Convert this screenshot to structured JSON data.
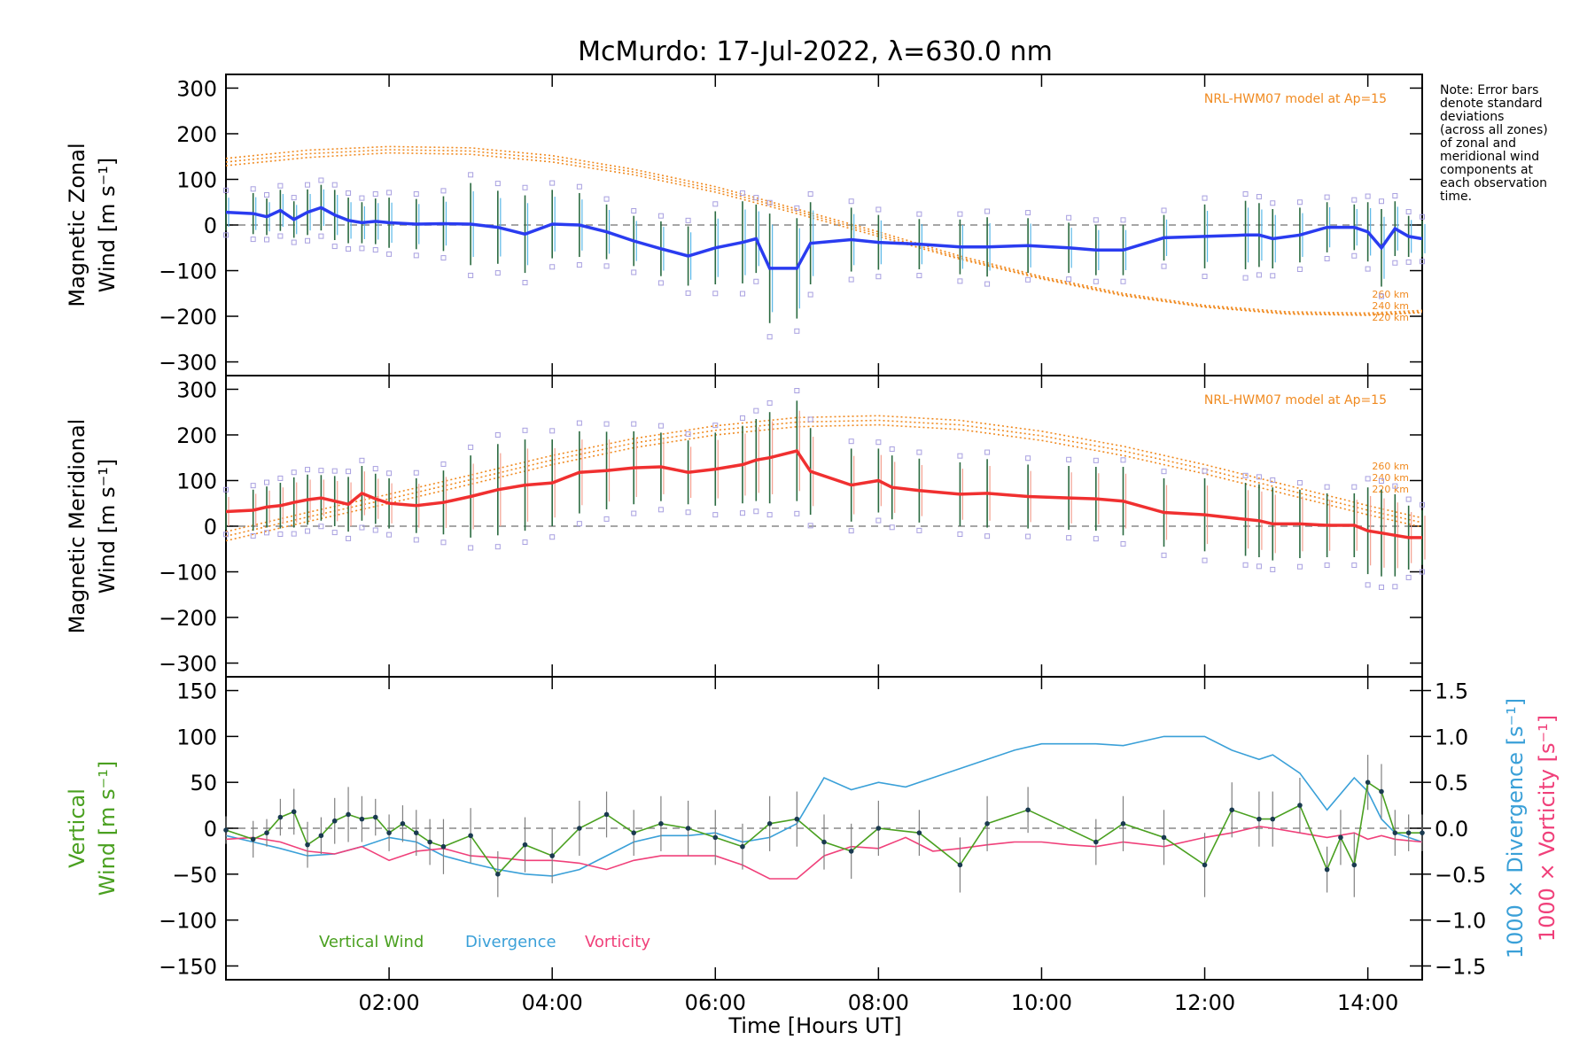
{
  "figure": {
    "title": "McMurdo: 17-Jul-2022, λ=630.0 nm",
    "note": [
      "Note: Error bars",
      "denote standard",
      "deviations",
      "(across all zones)",
      "of zonal and",
      "meridional wind",
      "components at",
      "each observation",
      "time."
    ],
    "xlabel": "Time [Hours UT]",
    "xticks": [
      "02:00",
      "04:00",
      "06:00",
      "08:00",
      "10:00",
      "12:00",
      "14:00"
    ]
  },
  "colors": {
    "zonal": "#2a3cf0",
    "zonal_light": "#5ab8e8",
    "meridional": "#f03030",
    "meridional_light": "#f4a090",
    "model": "#f08a20",
    "vertical": "#4aa020",
    "divergence": "#3aa0d8",
    "vorticity": "#f0407a",
    "errorbar": "#808080",
    "scatter": "#a8a0e0"
  },
  "chart_data": [
    {
      "type": "line",
      "name": "zonal-panel",
      "ylabel": [
        "Magnetic Zonal",
        "Wind [m s⁻¹]"
      ],
      "ylim": [
        -330,
        330
      ],
      "yticks": [
        300,
        200,
        100,
        0,
        -100,
        -200,
        -300
      ],
      "xlim": [
        "00:00",
        "14:40"
      ],
      "model_label": "NRL-HWM07 model at Ap=15",
      "model_altitudes": [
        "260 km",
        "240 km",
        "220 km"
      ],
      "series": [
        {
          "kind": "wind",
          "x": [
            "00:00",
            "00:20",
            "00:30",
            "00:40",
            "00:50",
            "01:00",
            "01:10",
            "01:20",
            "01:30",
            "01:40",
            "01:50",
            "02:00",
            "02:20",
            "02:40",
            "03:00",
            "03:20",
            "03:40",
            "04:00",
            "04:20",
            "04:40",
            "05:00",
            "05:20",
            "05:40",
            "06:00",
            "06:20",
            "06:30",
            "06:40",
            "07:00",
            "07:10",
            "07:40",
            "08:00",
            "08:30",
            "09:00",
            "09:20",
            "09:50",
            "10:20",
            "10:40",
            "11:00",
            "11:30",
            "12:00",
            "12:30",
            "12:40",
            "12:50",
            "13:10",
            "13:30",
            "13:50",
            "14:00",
            "14:10",
            "14:20",
            "14:30",
            "14:40"
          ],
          "values": [
            28,
            25,
            18,
            32,
            12,
            28,
            38,
            22,
            10,
            5,
            8,
            5,
            2,
            3,
            2,
            -5,
            -20,
            2,
            0,
            -15,
            -35,
            -52,
            -68,
            -50,
            -38,
            -30,
            -95,
            -95,
            -40,
            -32,
            -38,
            -42,
            -48,
            -48,
            -45,
            -50,
            -55,
            -55,
            -28,
            -25,
            -22,
            -22,
            -30,
            -22,
            -5,
            -5,
            -15,
            -50,
            -8,
            -25,
            -30
          ],
          "errors": [
            40,
            45,
            40,
            45,
            40,
            50,
            50,
            55,
            50,
            45,
            50,
            55,
            55,
            60,
            90,
            80,
            85,
            75,
            70,
            60,
            55,
            60,
            65,
            80,
            90,
            75,
            120,
            110,
            90,
            70,
            60,
            55,
            60,
            65,
            60,
            55,
            55,
            55,
            50,
            70,
            75,
            70,
            65,
            60,
            55,
            50,
            65,
            85,
            60,
            45,
            40
          ]
        },
        {
          "kind": "model",
          "name": "260 km",
          "x": [
            "00:00",
            "01:00",
            "02:00",
            "03:00",
            "04:00",
            "05:00",
            "06:00",
            "07:00",
            "08:00",
            "09:00",
            "10:00",
            "11:00",
            "12:00",
            "13:00",
            "14:00",
            "14:40"
          ],
          "values": [
            130,
            148,
            158,
            155,
            138,
            110,
            72,
            25,
            -25,
            -75,
            -118,
            -155,
            -180,
            -195,
            -198,
            -192
          ]
        },
        {
          "kind": "model",
          "name": "240 km",
          "x": [
            "00:00",
            "01:00",
            "02:00",
            "03:00",
            "04:00",
            "05:00",
            "06:00",
            "07:00",
            "08:00",
            "09:00",
            "10:00",
            "11:00",
            "12:00",
            "13:00",
            "14:00",
            "14:40"
          ],
          "values": [
            138,
            156,
            165,
            162,
            145,
            116,
            78,
            30,
            -20,
            -72,
            -116,
            -153,
            -179,
            -193,
            -196,
            -190
          ]
        },
        {
          "kind": "model",
          "name": "220 km",
          "x": [
            "00:00",
            "01:00",
            "02:00",
            "03:00",
            "04:00",
            "05:00",
            "06:00",
            "07:00",
            "08:00",
            "09:00",
            "10:00",
            "11:00",
            "12:00",
            "13:00",
            "14:00",
            "14:40"
          ],
          "values": [
            146,
            164,
            172,
            169,
            152,
            122,
            84,
            35,
            -15,
            -68,
            -113,
            -150,
            -176,
            -190,
            -193,
            -187
          ]
        }
      ]
    },
    {
      "type": "line",
      "name": "meridional-panel",
      "ylabel": [
        "Magnetic Meridional",
        "Wind [m s⁻¹]"
      ],
      "ylim": [
        -330,
        330
      ],
      "yticks": [
        300,
        200,
        100,
        0,
        -100,
        -200,
        -300
      ],
      "xlim": [
        "00:00",
        "14:40"
      ],
      "model_label": "NRL-HWM07 model at Ap=15",
      "model_altitudes": [
        "260 km",
        "240 km",
        "220 km"
      ],
      "series": [
        {
          "kind": "wind",
          "x": [
            "00:00",
            "00:20",
            "00:30",
            "00:40",
            "00:50",
            "01:00",
            "01:10",
            "01:20",
            "01:30",
            "01:40",
            "01:50",
            "02:00",
            "02:20",
            "02:40",
            "03:00",
            "03:20",
            "03:40",
            "04:00",
            "04:20",
            "04:40",
            "05:00",
            "05:20",
            "05:40",
            "06:00",
            "06:20",
            "06:30",
            "06:40",
            "07:00",
            "07:10",
            "07:40",
            "08:00",
            "08:10",
            "08:30",
            "09:00",
            "09:20",
            "09:50",
            "10:20",
            "10:40",
            "11:00",
            "11:30",
            "12:00",
            "12:30",
            "12:40",
            "12:50",
            "13:10",
            "13:30",
            "13:50",
            "14:00",
            "14:10",
            "14:20",
            "14:30",
            "14:40"
          ],
          "values": [
            32,
            35,
            42,
            45,
            52,
            58,
            62,
            55,
            48,
            72,
            60,
            50,
            45,
            52,
            65,
            80,
            90,
            95,
            118,
            122,
            128,
            130,
            118,
            125,
            135,
            145,
            150,
            165,
            120,
            90,
            100,
            85,
            78,
            70,
            72,
            65,
            62,
            60,
            55,
            30,
            25,
            15,
            12,
            5,
            5,
            2,
            2,
            -10,
            -15,
            -20,
            -25,
            -25
          ],
          "errors": [
            40,
            45,
            45,
            50,
            55,
            55,
            50,
            55,
            60,
            60,
            55,
            55,
            60,
            70,
            90,
            100,
            100,
            95,
            90,
            85,
            80,
            75,
            70,
            80,
            85,
            90,
            100,
            110,
            95,
            80,
            70,
            70,
            70,
            70,
            75,
            70,
            70,
            70,
            75,
            75,
            80,
            80,
            80,
            80,
            75,
            70,
            70,
            95,
            95,
            90,
            70,
            60
          ]
        },
        {
          "kind": "model",
          "name": "260 km",
          "x": [
            "00:00",
            "01:00",
            "02:00",
            "03:00",
            "04:00",
            "05:00",
            "06:00",
            "07:00",
            "08:00",
            "09:00",
            "10:00",
            "11:00",
            "12:00",
            "13:00",
            "14:00",
            "14:40"
          ],
          "values": [
            -32,
            10,
            50,
            92,
            135,
            172,
            200,
            218,
            222,
            212,
            188,
            155,
            115,
            70,
            25,
            -2
          ]
        },
        {
          "kind": "model",
          "name": "240 km",
          "x": [
            "00:00",
            "01:00",
            "02:00",
            "03:00",
            "04:00",
            "05:00",
            "06:00",
            "07:00",
            "08:00",
            "09:00",
            "10:00",
            "11:00",
            "12:00",
            "13:00",
            "14:00",
            "14:40"
          ],
          "values": [
            -22,
            20,
            60,
            102,
            145,
            182,
            210,
            228,
            232,
            222,
            198,
            165,
            125,
            80,
            35,
            8
          ]
        },
        {
          "kind": "model",
          "name": "220 km",
          "x": [
            "00:00",
            "01:00",
            "02:00",
            "03:00",
            "04:00",
            "05:00",
            "06:00",
            "07:00",
            "08:00",
            "09:00",
            "10:00",
            "11:00",
            "12:00",
            "13:00",
            "14:00",
            "14:40"
          ],
          "values": [
            -12,
            30,
            70,
            112,
            155,
            192,
            220,
            238,
            242,
            232,
            208,
            175,
            135,
            90,
            45,
            18
          ]
        }
      ]
    },
    {
      "type": "line",
      "name": "vertical-panel",
      "ylabel": [
        "Vertical",
        "Wind [m s⁻¹]"
      ],
      "ylim": [
        -165,
        165
      ],
      "yticks": [
        150,
        100,
        50,
        0,
        -50,
        -100,
        -150
      ],
      "xlim": [
        "00:00",
        "14:40"
      ],
      "y2label_divergence": "1000 × Divergence [s⁻¹]",
      "y2label_vorticity": "1000 × Vorticity [s⁻¹]",
      "y2lim": [
        -1.65,
        1.65
      ],
      "y2ticks": [
        1.5,
        1.0,
        0.5,
        0.0,
        -0.5,
        -1.0,
        -1.5
      ],
      "y2ticklabels": [
        "1.5",
        "1.0",
        "0.5",
        "0.0",
        "−0.5",
        "−1.0",
        "−1.5"
      ],
      "legend": [
        "Vertical Wind",
        "Divergence",
        "Vorticity"
      ],
      "series": [
        {
          "name": "Vertical Wind",
          "axis": "left",
          "x": [
            "00:00",
            "00:20",
            "00:30",
            "00:40",
            "00:50",
            "01:00",
            "01:10",
            "01:20",
            "01:30",
            "01:40",
            "01:50",
            "02:00",
            "02:10",
            "02:20",
            "02:30",
            "02:40",
            "03:00",
            "03:20",
            "03:40",
            "04:00",
            "04:20",
            "04:40",
            "05:00",
            "05:20",
            "05:40",
            "06:00",
            "06:20",
            "06:40",
            "07:00",
            "07:20",
            "07:40",
            "08:00",
            "08:30",
            "09:00",
            "09:20",
            "09:50",
            "10:40",
            "11:00",
            "11:30",
            "12:00",
            "12:20",
            "12:40",
            "12:50",
            "13:10",
            "13:30",
            "13:40",
            "13:50",
            "14:00",
            "14:10",
            "14:20",
            "14:30",
            "14:40"
          ],
          "values": [
            -2,
            -12,
            -5,
            12,
            18,
            -18,
            -8,
            8,
            15,
            10,
            12,
            -5,
            5,
            -5,
            -15,
            -20,
            -8,
            -50,
            -18,
            -30,
            0,
            15,
            -5,
            5,
            0,
            -10,
            -20,
            5,
            10,
            -15,
            -25,
            0,
            -5,
            -40,
            5,
            20,
            -15,
            5,
            -10,
            -40,
            20,
            10,
            10,
            25,
            -45,
            -10,
            -40,
            50,
            40,
            -5,
            -5,
            -5
          ],
          "errors": [
            15,
            20,
            15,
            20,
            25,
            25,
            20,
            25,
            30,
            25,
            20,
            20,
            20,
            25,
            25,
            30,
            30,
            25,
            30,
            30,
            30,
            25,
            25,
            30,
            30,
            30,
            25,
            30,
            30,
            30,
            30,
            30,
            25,
            30,
            30,
            25,
            25,
            30,
            30,
            35,
            30,
            30,
            30,
            30,
            25,
            30,
            35,
            30,
            30,
            25,
            20,
            20
          ]
        },
        {
          "name": "Divergence",
          "axis": "right",
          "x": [
            "00:00",
            "00:20",
            "00:40",
            "01:00",
            "01:20",
            "01:40",
            "02:00",
            "02:20",
            "02:40",
            "03:00",
            "03:20",
            "03:40",
            "04:00",
            "04:20",
            "04:40",
            "05:00",
            "05:20",
            "05:40",
            "06:00",
            "06:20",
            "06:40",
            "07:00",
            "07:20",
            "07:40",
            "08:00",
            "08:20",
            "08:40",
            "09:00",
            "09:20",
            "09:40",
            "10:00",
            "10:20",
            "10:40",
            "11:00",
            "11:30",
            "12:00",
            "12:20",
            "12:40",
            "12:50",
            "13:10",
            "13:30",
            "13:50",
            "14:00",
            "14:10",
            "14:20",
            "14:40"
          ],
          "values": [
            -0.08,
            -0.15,
            -0.22,
            -0.3,
            -0.28,
            -0.2,
            -0.1,
            -0.15,
            -0.3,
            -0.38,
            -0.45,
            -0.5,
            -0.52,
            -0.45,
            -0.3,
            -0.15,
            -0.08,
            -0.08,
            -0.05,
            -0.15,
            -0.1,
            0.05,
            0.55,
            0.42,
            0.5,
            0.45,
            0.55,
            0.65,
            0.75,
            0.85,
            0.92,
            0.92,
            0.92,
            0.9,
            1.0,
            1.0,
            0.85,
            0.75,
            0.8,
            0.6,
            0.2,
            0.55,
            0.4,
            0.1,
            -0.05,
            -0.15
          ],
          "errors": []
        },
        {
          "name": "Vorticity",
          "axis": "right",
          "x": [
            "00:00",
            "00:20",
            "00:40",
            "01:00",
            "01:20",
            "01:40",
            "02:00",
            "02:20",
            "02:40",
            "03:00",
            "03:20",
            "03:40",
            "04:00",
            "04:20",
            "04:40",
            "05:00",
            "05:20",
            "05:40",
            "06:00",
            "06:20",
            "06:40",
            "07:00",
            "07:20",
            "07:40",
            "08:00",
            "08:20",
            "08:40",
            "09:00",
            "09:20",
            "09:40",
            "10:00",
            "10:20",
            "10:40",
            "11:00",
            "11:30",
            "12:00",
            "12:20",
            "12:40",
            "12:50",
            "13:10",
            "13:30",
            "13:50",
            "14:00",
            "14:10",
            "14:20",
            "14:40"
          ],
          "values": [
            -0.12,
            -0.1,
            -0.15,
            -0.25,
            -0.28,
            -0.2,
            -0.35,
            -0.25,
            -0.22,
            -0.3,
            -0.32,
            -0.35,
            -0.35,
            -0.38,
            -0.45,
            -0.35,
            -0.3,
            -0.3,
            -0.3,
            -0.4,
            -0.55,
            -0.55,
            -0.3,
            -0.2,
            -0.22,
            -0.1,
            -0.25,
            -0.22,
            -0.18,
            -0.15,
            -0.15,
            -0.18,
            -0.2,
            -0.15,
            -0.2,
            -0.1,
            -0.05,
            0.02,
            0.0,
            -0.05,
            -0.1,
            -0.05,
            -0.12,
            -0.08,
            -0.12,
            -0.15
          ],
          "errors": []
        }
      ]
    }
  ]
}
